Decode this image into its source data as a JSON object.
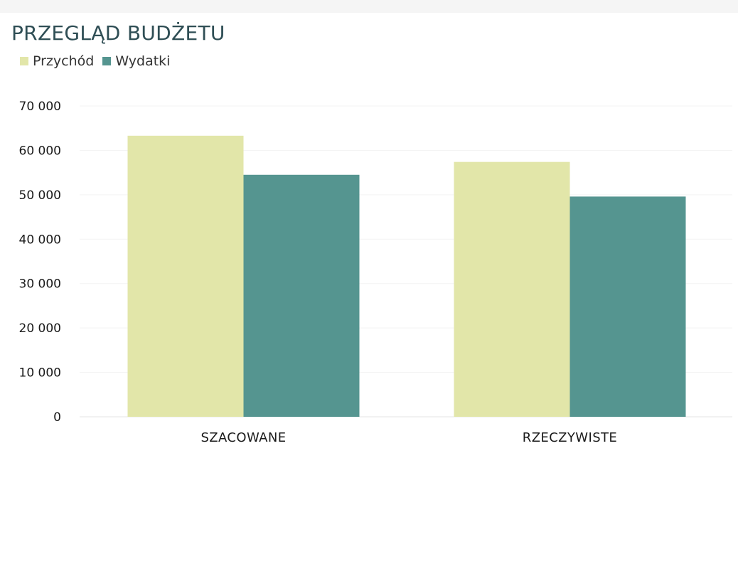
{
  "chart_data": {
    "type": "bar",
    "title": "PRZEGLĄD BUDŻETU",
    "categories": [
      "SZACOWANE",
      "RZECZYWISTE"
    ],
    "series": [
      {
        "name": "Przychód",
        "values": [
          63300,
          57400
        ],
        "color": "#e2e6a9"
      },
      {
        "name": "Wydatki",
        "values": [
          54500,
          49600
        ],
        "color": "#559590"
      }
    ],
    "y_ticks": [
      "0",
      "10 000",
      "20 000",
      "30 000",
      "40 000",
      "50 000",
      "60 000",
      "70 000"
    ],
    "ylim": [
      0,
      70000
    ],
    "legend_position": "top-left",
    "grid": true,
    "title_color": "#2f4e55"
  }
}
